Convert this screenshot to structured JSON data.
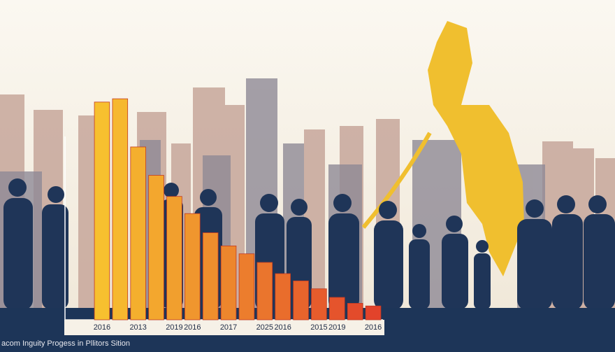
{
  "chart_data": {
    "type": "bar",
    "title": "acom Inguity Progess in Pllitors Sition",
    "categories": [
      "2016",
      null,
      "2013",
      null,
      "2019",
      "2016",
      null,
      "2017",
      null,
      "2025",
      "2016",
      null,
      "2015",
      "2019",
      null,
      "2016"
    ],
    "values": [
      330,
      335,
      262,
      219,
      187,
      161,
      132,
      112,
      100,
      87,
      70,
      59,
      47,
      34,
      25,
      21
    ],
    "ylim": [
      0,
      350
    ],
    "colors": [
      "#f7c02f",
      "#e2432b"
    ]
  }
}
